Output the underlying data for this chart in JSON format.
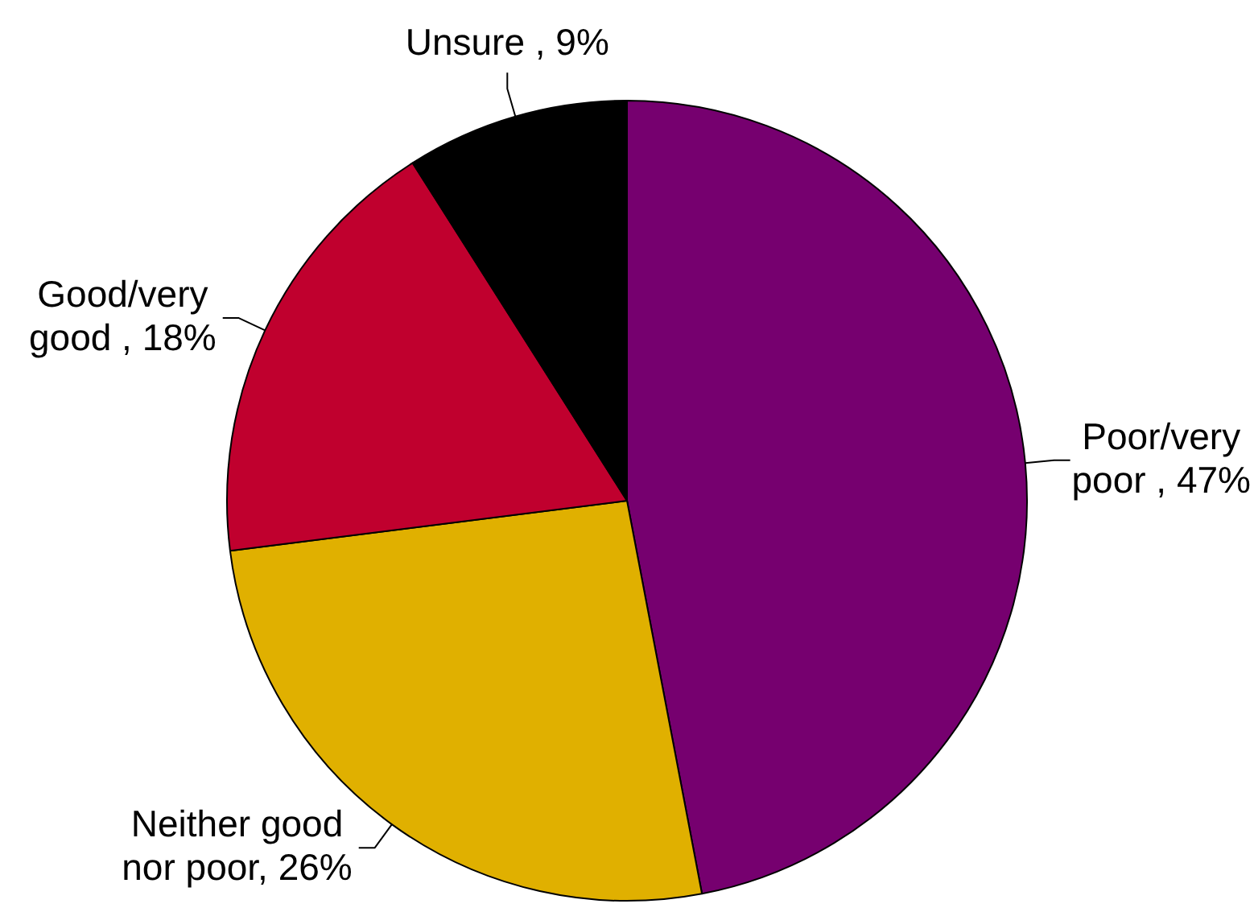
{
  "chart_data": {
    "type": "pie",
    "categories": [
      "Poor/very poor",
      "Neither good nor poor",
      "Good/very good",
      "Unsure"
    ],
    "values": [
      47,
      26,
      18,
      9
    ],
    "value_labels": [
      " , 47%",
      ", 26%",
      " , 18%",
      " , 9%"
    ],
    "colors": [
      "#76006f",
      "#e0b000",
      "#c0002e",
      "#000000"
    ]
  }
}
